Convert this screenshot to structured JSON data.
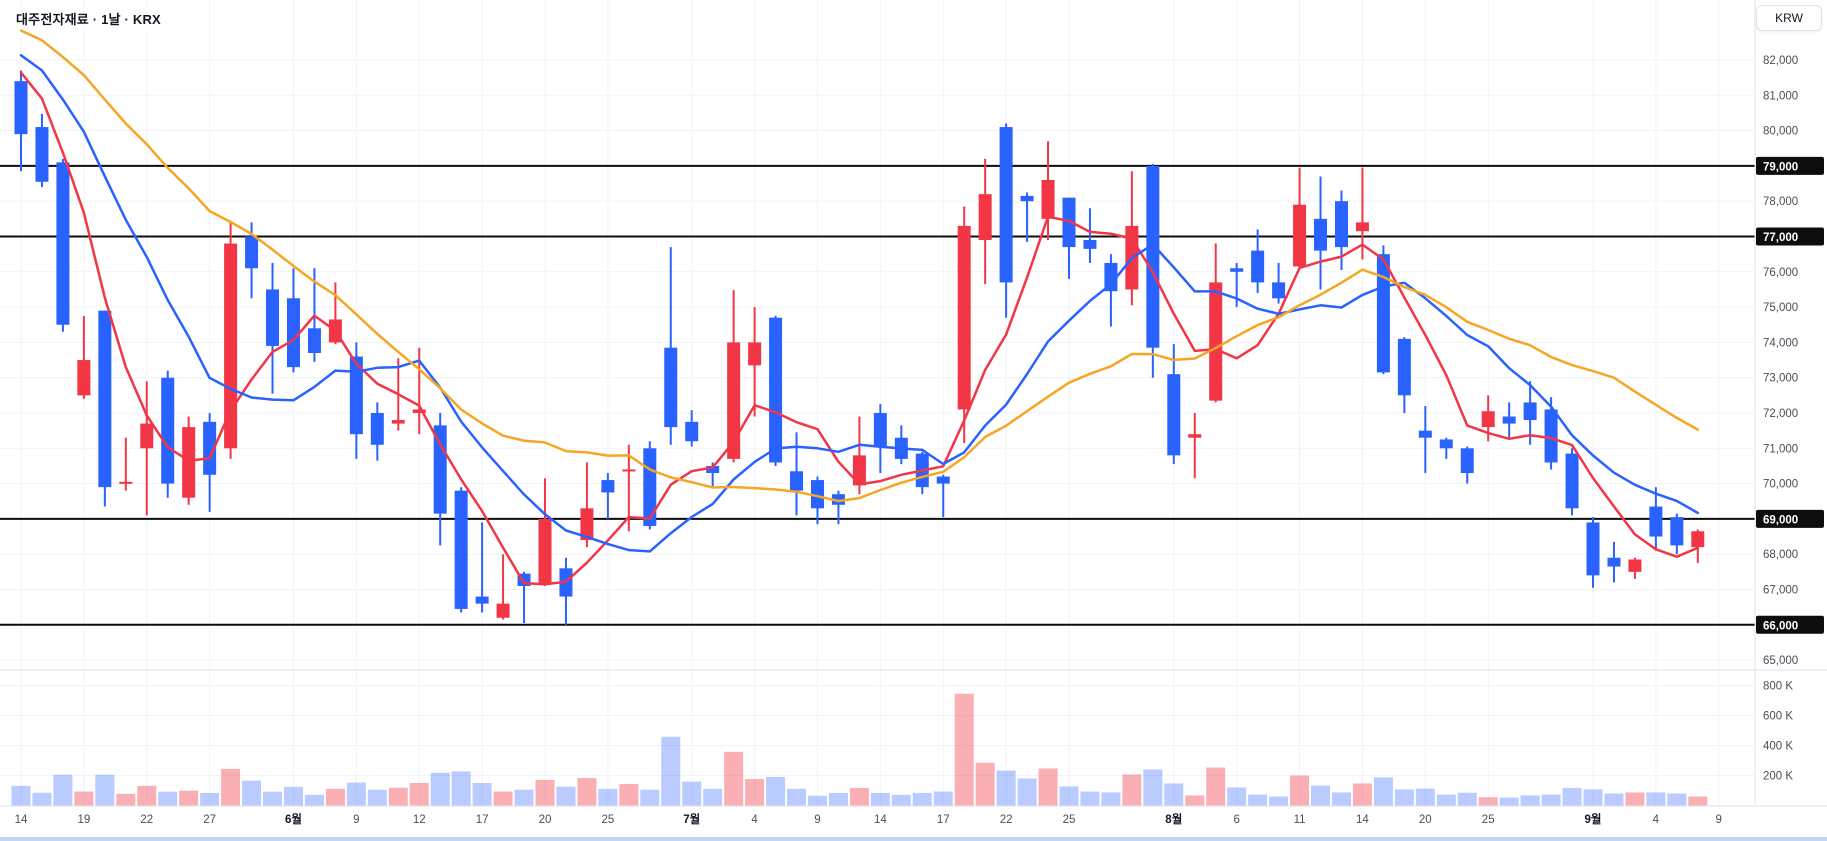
{
  "header": {
    "title": "대주전자재료 · 1날 · KRX"
  },
  "price_axis": {
    "currency_label": "KRW",
    "ticks": [
      82000,
      81000,
      80000,
      79000,
      78000,
      77000,
      76000,
      75000,
      74000,
      73000,
      72000,
      71000,
      70000,
      69000,
      68000,
      67000,
      66000,
      65000
    ]
  },
  "volume_axis": {
    "ticks": [
      {
        "label": "800 K",
        "value": 800
      },
      {
        "label": "600 K",
        "value": 600
      },
      {
        "label": "400 K",
        "value": 400
      },
      {
        "label": "200 K",
        "value": 200
      }
    ]
  },
  "time_axis": {
    "ticks": [
      {
        "label": "14",
        "index": 0,
        "month": false
      },
      {
        "label": "19",
        "index": 3,
        "month": false
      },
      {
        "label": "22",
        "index": 6,
        "month": false
      },
      {
        "label": "27",
        "index": 9,
        "month": false
      },
      {
        "label": "6월",
        "index": 13,
        "month": true
      },
      {
        "label": "9",
        "index": 16,
        "month": false
      },
      {
        "label": "12",
        "index": 19,
        "month": false
      },
      {
        "label": "17",
        "index": 22,
        "month": false
      },
      {
        "label": "20",
        "index": 25,
        "month": false
      },
      {
        "label": "25",
        "index": 28,
        "month": false
      },
      {
        "label": "7월",
        "index": 32,
        "month": true
      },
      {
        "label": "4",
        "index": 35,
        "month": false
      },
      {
        "label": "9",
        "index": 38,
        "month": false
      },
      {
        "label": "14",
        "index": 41,
        "month": false
      },
      {
        "label": "17",
        "index": 44,
        "month": false
      },
      {
        "label": "22",
        "index": 47,
        "month": false
      },
      {
        "label": "25",
        "index": 50,
        "month": false
      },
      {
        "label": "8월",
        "index": 55,
        "month": true
      },
      {
        "label": "6",
        "index": 58,
        "month": false
      },
      {
        "label": "11",
        "index": 61,
        "month": false
      },
      {
        "label": "14",
        "index": 64,
        "month": false
      },
      {
        "label": "20",
        "index": 67,
        "month": false
      },
      {
        "label": "25",
        "index": 70,
        "month": false
      },
      {
        "label": "9월",
        "index": 75,
        "month": true
      },
      {
        "label": "4",
        "index": 78,
        "month": false
      },
      {
        "label": "9",
        "index": 81,
        "month": false
      }
    ]
  },
  "chart_data": {
    "type": "candlestick",
    "title": "대주전자재료 · 1날 · KRX",
    "unit": "KRW",
    "ylim": [
      64500,
      82800
    ],
    "grid": true,
    "levels": [
      79000,
      77000,
      69000,
      66000
    ],
    "candles_format": [
      "open",
      "high",
      "low",
      "close",
      "volume_K"
    ],
    "candles": [
      [
        81400,
        81700,
        78850,
        79900,
        131
      ],
      [
        80100,
        80470,
        78400,
        78550,
        85
      ],
      [
        79100,
        79200,
        74300,
        74500,
        205
      ],
      [
        72500,
        74750,
        72400,
        73500,
        93
      ],
      [
        74900,
        74900,
        69350,
        69900,
        205
      ],
      [
        70000,
        71300,
        69800,
        70050,
        78
      ],
      [
        71000,
        72900,
        69100,
        71700,
        131
      ],
      [
        73000,
        73200,
        69600,
        70000,
        92
      ],
      [
        69600,
        71900,
        69400,
        71600,
        99
      ],
      [
        71750,
        72000,
        69200,
        70250,
        84
      ],
      [
        71000,
        77400,
        70700,
        76800,
        244
      ],
      [
        77000,
        77400,
        75250,
        76100,
        166
      ],
      [
        75500,
        76250,
        72550,
        73900,
        92
      ],
      [
        75250,
        76100,
        73150,
        73300,
        124
      ],
      [
        74400,
        76100,
        73450,
        73700,
        71
      ],
      [
        74000,
        75700,
        73950,
        74650,
        111
      ],
      [
        73600,
        74000,
        70700,
        71400,
        153
      ],
      [
        72000,
        72300,
        70650,
        71100,
        105
      ],
      [
        71700,
        73550,
        71500,
        71800,
        118
      ],
      [
        72000,
        73850,
        71400,
        72100,
        150
      ],
      [
        71650,
        72000,
        68250,
        69150,
        218
      ],
      [
        69800,
        69900,
        66350,
        66450,
        227
      ],
      [
        66800,
        68900,
        66350,
        66600,
        150
      ],
      [
        66200,
        68000,
        66150,
        66600,
        93
      ],
      [
        67450,
        67500,
        66050,
        67100,
        105
      ],
      [
        67150,
        70150,
        67100,
        69000,
        170
      ],
      [
        67600,
        67900,
        66000,
        66800,
        125
      ],
      [
        68400,
        70600,
        68200,
        69300,
        183
      ],
      [
        70100,
        70300,
        69000,
        69750,
        111
      ],
      [
        70350,
        71100,
        68650,
        70400,
        143
      ],
      [
        71000,
        71200,
        68700,
        68800,
        105
      ],
      [
        73850,
        76700,
        71100,
        71600,
        458
      ],
      [
        71750,
        72080,
        71050,
        71200,
        159
      ],
      [
        70500,
        70600,
        69900,
        70300,
        111
      ],
      [
        70700,
        75480,
        70600,
        74000,
        358
      ],
      [
        73350,
        75000,
        71900,
        74000,
        176
      ],
      [
        74700,
        74750,
        70500,
        70600,
        190
      ],
      [
        70350,
        71450,
        69100,
        69800,
        111
      ],
      [
        70100,
        70200,
        68850,
        69300,
        65
      ],
      [
        69700,
        69800,
        68850,
        69400,
        84
      ],
      [
        69950,
        71900,
        69700,
        70800,
        117
      ],
      [
        72000,
        72250,
        70300,
        71050,
        84
      ],
      [
        71300,
        71650,
        70550,
        70700,
        71
      ],
      [
        70850,
        70900,
        69700,
        69900,
        84
      ],
      [
        70200,
        70250,
        69050,
        70000,
        93
      ],
      [
        72100,
        77850,
        71150,
        77300,
        745
      ],
      [
        76900,
        79200,
        75650,
        78200,
        285
      ],
      [
        80100,
        80200,
        74700,
        75700,
        233
      ],
      [
        78150,
        78250,
        76850,
        78000,
        180
      ],
      [
        77500,
        79700,
        76900,
        78600,
        247
      ],
      [
        78100,
        78100,
        75800,
        76700,
        127
      ],
      [
        76900,
        77800,
        76250,
        76650,
        93
      ],
      [
        76250,
        76500,
        74450,
        75450,
        87
      ],
      [
        75500,
        78850,
        75050,
        77300,
        207
      ],
      [
        79000,
        79050,
        73000,
        73850,
        240
      ],
      [
        73100,
        73950,
        70550,
        70800,
        147
      ],
      [
        71300,
        72000,
        70150,
        71400,
        67
      ],
      [
        72350,
        76800,
        72300,
        75700,
        253
      ],
      [
        76100,
        76250,
        75000,
        76000,
        120
      ],
      [
        76600,
        77200,
        75400,
        75700,
        73
      ],
      [
        75700,
        76250,
        75100,
        75250,
        60
      ],
      [
        76150,
        78950,
        76100,
        77900,
        200
      ],
      [
        77500,
        78700,
        75500,
        76600,
        133
      ],
      [
        78000,
        78300,
        76050,
        76700,
        87
      ],
      [
        77150,
        78950,
        76350,
        77400,
        147
      ],
      [
        76500,
        76750,
        73100,
        73150,
        187
      ],
      [
        74100,
        74150,
        72000,
        72500,
        107
      ],
      [
        71500,
        72200,
        70300,
        71300,
        113
      ],
      [
        71250,
        71300,
        70700,
        71000,
        73
      ],
      [
        71000,
        71050,
        70000,
        70300,
        85
      ],
      [
        71600,
        72500,
        71200,
        72050,
        55
      ],
      [
        71900,
        72300,
        71250,
        71700,
        53
      ],
      [
        72300,
        72900,
        71100,
        71800,
        67
      ],
      [
        72100,
        72450,
        70400,
        70600,
        73
      ],
      [
        70850,
        71000,
        69100,
        69300,
        117
      ],
      [
        68900,
        69050,
        67050,
        67400,
        107
      ],
      [
        67900,
        68350,
        67200,
        67650,
        80
      ],
      [
        67500,
        67900,
        67300,
        67850,
        87
      ],
      [
        69350,
        69900,
        68100,
        68500,
        87
      ],
      [
        69050,
        69150,
        68000,
        68250,
        80
      ],
      [
        68200,
        68700,
        67750,
        68650,
        60
      ]
    ],
    "moving_averages": [
      {
        "name": "MA5",
        "period": 5,
        "color": "#f23645"
      },
      {
        "name": "MA10",
        "period": 10,
        "color": "#2962ff"
      },
      {
        "name": "MA20",
        "period": 20,
        "color": "#f5a623"
      }
    ],
    "prehistory_seed": {
      "bars": 20,
      "from": 84200,
      "to": 81900
    }
  },
  "colors": {
    "up": "#f23645",
    "down": "#2962ff",
    "vol_up": "rgba(242,54,69,0.40)",
    "vol_down": "rgba(41,98,255,0.33)",
    "level_line": "#0d0d0d",
    "grid": "#f0f3fa",
    "axis_border": "#e0e3eb",
    "axis_text": "#4a4e59",
    "badge_bg": "#0d0d0d",
    "badge_text": "#ffffff",
    "bottom_strip": "#c3d2f7"
  }
}
